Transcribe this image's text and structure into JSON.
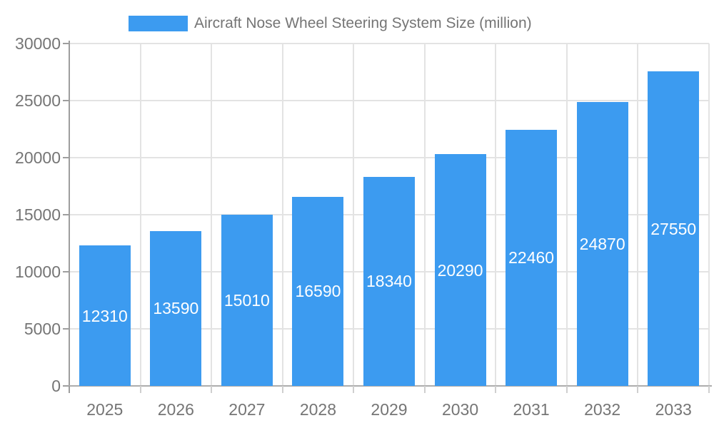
{
  "legend": {
    "label": "Aircraft Nose Wheel Steering System Size (million)"
  },
  "chart_data": {
    "type": "bar",
    "title": "Aircraft Nose Wheel Steering System Size (million)",
    "categories": [
      "2025",
      "2026",
      "2027",
      "2028",
      "2029",
      "2030",
      "2031",
      "2032",
      "2033"
    ],
    "values": [
      12310,
      13590,
      15010,
      16590,
      18340,
      20290,
      22460,
      24870,
      27550
    ],
    "bar_labels": [
      "12310",
      "13590",
      "15010",
      "16590",
      "18340",
      "20290",
      "22460",
      "24870",
      "27550"
    ],
    "xlabel": "",
    "ylabel": "",
    "ylim": [
      0,
      30000
    ],
    "ytick_step": 5000,
    "ytick_labels": [
      "0",
      "5000",
      "10000",
      "15000",
      "20000",
      "25000",
      "30000"
    ],
    "grid": true,
    "legend_position": "top",
    "colors": {
      "bar": "#3C9BF0",
      "bar_value_text": "#FFFFFF",
      "grid_h": "#E3E3E3",
      "grid_v": "#E3E3E3",
      "axis_y": "#9E9E9E",
      "axis_x": "#ADADAD",
      "xtick": "#CFCFCF",
      "tick_text": "#757575",
      "background": "#FFFFFF"
    }
  }
}
